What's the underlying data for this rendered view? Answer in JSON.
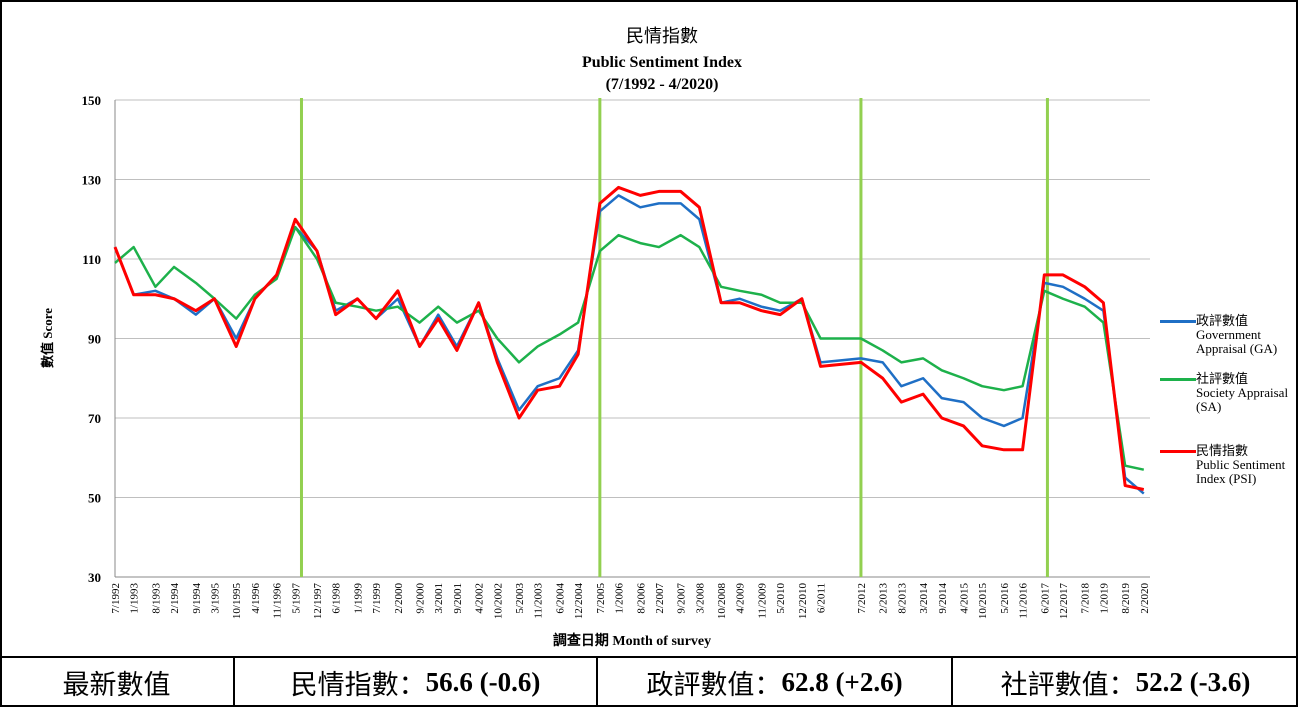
{
  "chart_data": {
    "type": "line",
    "title": "民情指數",
    "subtitle": "Public Sentiment Index",
    "period": "(7/1992 - 4/2020)",
    "y_label": "數值 Score",
    "x_label": "調查日期  Month of survey",
    "x": [
      "7/1992",
      "1/1993",
      "8/1993",
      "2/1994",
      "9/1994",
      "3/1995",
      "10/1995",
      "4/1996",
      "11/1996",
      "5/1997",
      "12/1997",
      "6/1998",
      "1/1999",
      "7/1999",
      "2/2000",
      "9/2000",
      "3/2001",
      "9/2001",
      "4/2002",
      "10/2002",
      "5/2003",
      "11/2003",
      "6/2004",
      "12/2004",
      "7/2005",
      "1/2006",
      "8/2006",
      "2/2007",
      "9/2007",
      "3/2008",
      "10/2008",
      "4/2009",
      "11/2009",
      "5/2010",
      "12/2010",
      "6/2011",
      "7/2012",
      "2/2013",
      "8/2013",
      "3/2014",
      "9/2014",
      "4/2015",
      "10/2015",
      "5/2016",
      "11/2016",
      "6/2017",
      "12/2017",
      "7/2018",
      "1/2019",
      "8/2019",
      "2/2020"
    ],
    "xlim": [
      "7/1992",
      "4/2020"
    ],
    "ylim": [
      30,
      150
    ],
    "yticks": [
      30,
      50,
      70,
      90,
      110,
      130,
      150
    ],
    "grid": true,
    "vlines": {
      "color": "#92d050",
      "x": [
        "7/1997",
        "7/2005",
        "7/2012",
        "7/2017"
      ]
    },
    "series": [
      {
        "name": "政評數值",
        "name_en": "Government Appraisal (GA)",
        "color": "#1f6fc5",
        "values": [
          113,
          101,
          102,
          100,
          96,
          100,
          90,
          100,
          106,
          118,
          112,
          97,
          100,
          95,
          100,
          88,
          96,
          88,
          99,
          85,
          72,
          78,
          80,
          87,
          122,
          126,
          123,
          124,
          124,
          120,
          99,
          100,
          98,
          97,
          100,
          84,
          85,
          84,
          78,
          80,
          75,
          74,
          70,
          68,
          70,
          104,
          103,
          100,
          97,
          55,
          51
        ]
      },
      {
        "name": "社評數值",
        "name_en": "Society Appraisal (SA)",
        "color": "#1db14b",
        "values": [
          109,
          113,
          103,
          108,
          104,
          100,
          95,
          101,
          105,
          118,
          110,
          99,
          98,
          97,
          98,
          94,
          98,
          94,
          97,
          90,
          84,
          88,
          91,
          94,
          112,
          116,
          114,
          113,
          116,
          113,
          103,
          102,
          101,
          99,
          99,
          90,
          90,
          87,
          84,
          85,
          82,
          80,
          78,
          77,
          78,
          102,
          100,
          98,
          94,
          58,
          57
        ]
      },
      {
        "name": "民情指數",
        "name_en": "Public Sentiment Index (PSI)",
        "color": "#ff0000",
        "values": [
          113,
          101,
          101,
          100,
          97,
          100,
          88,
          100,
          106,
          120,
          112,
          96,
          100,
          95,
          102,
          88,
          95,
          87,
          99,
          84,
          70,
          77,
          78,
          86,
          124,
          128,
          126,
          127,
          127,
          123,
          99,
          99,
          97,
          96,
          100,
          83,
          84,
          80,
          74,
          76,
          70,
          68,
          63,
          62,
          62,
          106,
          106,
          103,
          99,
          53,
          52
        ]
      }
    ]
  },
  "table": {
    "label": "最新數值",
    "cells": [
      {
        "name": "民情指數：",
        "value": "56.6 (-0.6)"
      },
      {
        "name": "政評數值：",
        "value": "62.8 (+2.6)"
      },
      {
        "name": "社評數值：",
        "value": "52.2 (-3.6)"
      }
    ]
  }
}
